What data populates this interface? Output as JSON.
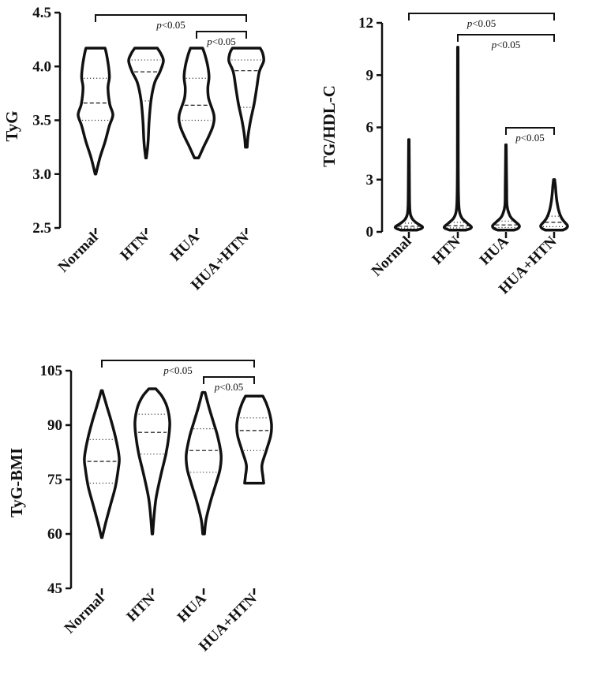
{
  "chart_data": [
    {
      "type": "violin",
      "ylabel": "TyG",
      "categories": [
        "Normal",
        "HTN",
        "HUA",
        "HUA+HTN"
      ],
      "ylim": [
        2.5,
        4.5
      ],
      "yticks": [
        "2.5",
        "3.0",
        "3.5",
        "4.0",
        "4.5"
      ],
      "grid": false,
      "violins": [
        {
          "min": 3.0,
          "max": 4.17,
          "q1": 3.5,
          "median": 3.66,
          "q3": 3.89,
          "profile": [
            [
              3.0,
              0.02
            ],
            [
              3.15,
              0.25
            ],
            [
              3.3,
              0.55
            ],
            [
              3.45,
              0.8
            ],
            [
              3.55,
              1.0
            ],
            [
              3.65,
              0.82
            ],
            [
              3.8,
              0.72
            ],
            [
              3.9,
              0.8
            ],
            [
              4.0,
              0.75
            ],
            [
              4.1,
              0.65
            ],
            [
              4.17,
              0.55
            ]
          ]
        },
        {
          "min": 3.15,
          "max": 4.17,
          "q1": 3.68,
          "median": 3.95,
          "q3": 4.06,
          "profile": [
            [
              3.15,
              0.02
            ],
            [
              3.3,
              0.12
            ],
            [
              3.5,
              0.18
            ],
            [
              3.7,
              0.3
            ],
            [
              3.85,
              0.5
            ],
            [
              3.95,
              0.8
            ],
            [
              4.05,
              1.0
            ],
            [
              4.12,
              0.85
            ],
            [
              4.17,
              0.65
            ]
          ]
        },
        {
          "min": 3.15,
          "max": 4.17,
          "q1": 3.5,
          "median": 3.64,
          "q3": 3.89,
          "profile": [
            [
              3.15,
              0.12
            ],
            [
              3.25,
              0.4
            ],
            [
              3.35,
              0.7
            ],
            [
              3.45,
              0.95
            ],
            [
              3.55,
              1.0
            ],
            [
              3.7,
              0.7
            ],
            [
              3.8,
              0.65
            ],
            [
              3.9,
              0.72
            ],
            [
              4.0,
              0.65
            ],
            [
              4.1,
              0.5
            ],
            [
              4.17,
              0.35
            ]
          ]
        },
        {
          "min": 3.25,
          "max": 4.17,
          "q1": 3.62,
          "median": 3.96,
          "q3": 4.06,
          "profile": [
            [
              3.25,
              0.05
            ],
            [
              3.35,
              0.1
            ],
            [
              3.5,
              0.25
            ],
            [
              3.65,
              0.45
            ],
            [
              3.8,
              0.6
            ],
            [
              3.95,
              0.75
            ],
            [
              4.05,
              1.0
            ],
            [
              4.12,
              0.95
            ],
            [
              4.17,
              0.8
            ]
          ]
        }
      ],
      "comparisons": [
        {
          "from": "Normal",
          "to": "HUA+HTN",
          "label_p": "p",
          "label_rest": "<0.05"
        },
        {
          "from": "HUA",
          "to": "HUA+HTN",
          "label_p": "p",
          "label_rest": "<0.05"
        }
      ]
    },
    {
      "type": "violin",
      "ylabel": "TG/HDL-C",
      "categories": [
        "Normal",
        "HTN",
        "HUA",
        "HUA+HTN"
      ],
      "ylim": [
        0,
        12
      ],
      "yticks": [
        "0",
        "3",
        "6",
        "9",
        "12"
      ],
      "grid": false,
      "violins": [
        {
          "min": 0.1,
          "max": 5.3,
          "q1": 0.22,
          "median": 0.32,
          "q3": 0.5,
          "profile": [
            [
              0.1,
              0.6
            ],
            [
              0.2,
              0.95
            ],
            [
              0.3,
              1.0
            ],
            [
              0.45,
              0.7
            ],
            [
              0.7,
              0.3
            ],
            [
              1.0,
              0.12
            ],
            [
              1.5,
              0.06
            ],
            [
              2.5,
              0.04
            ],
            [
              5.3,
              0.02
            ]
          ]
        },
        {
          "min": 0.1,
          "max": 10.6,
          "q1": 0.23,
          "median": 0.35,
          "q3": 0.55,
          "profile": [
            [
              0.1,
              0.6
            ],
            [
              0.2,
              0.95
            ],
            [
              0.3,
              1.0
            ],
            [
              0.5,
              0.7
            ],
            [
              0.8,
              0.3
            ],
            [
              1.2,
              0.12
            ],
            [
              2.0,
              0.05
            ],
            [
              4.0,
              0.03
            ],
            [
              10.6,
              0.02
            ]
          ]
        },
        {
          "min": 0.1,
          "max": 5.0,
          "q1": 0.25,
          "median": 0.4,
          "q3": 0.62,
          "profile": [
            [
              0.1,
              0.6
            ],
            [
              0.2,
              0.9
            ],
            [
              0.35,
              1.0
            ],
            [
              0.55,
              0.75
            ],
            [
              0.8,
              0.4
            ],
            [
              1.0,
              0.25
            ],
            [
              1.5,
              0.08
            ],
            [
              2.5,
              0.05
            ],
            [
              5.0,
              0.02
            ]
          ]
        },
        {
          "min": 0.1,
          "max": 3.0,
          "q1": 0.3,
          "median": 0.55,
          "q3": 0.9,
          "profile": [
            [
              0.1,
              0.65
            ],
            [
              0.2,
              0.9
            ],
            [
              0.35,
              1.0
            ],
            [
              0.55,
              0.8
            ],
            [
              0.8,
              0.55
            ],
            [
              1.2,
              0.35
            ],
            [
              1.7,
              0.22
            ],
            [
              2.2,
              0.14
            ],
            [
              2.6,
              0.1
            ],
            [
              3.0,
              0.04
            ]
          ]
        }
      ],
      "comparisons": [
        {
          "from": "Normal",
          "to": "HUA+HTN",
          "label_p": "p",
          "label_rest": "<0.05"
        },
        {
          "from": "HTN",
          "to": "HUA+HTN",
          "label_p": "p",
          "label_rest": "<0.05"
        },
        {
          "from": "HUA",
          "to": "HUA+HTN",
          "label_p": "p",
          "label_rest": "<0.05"
        }
      ]
    },
    {
      "type": "violin",
      "ylabel": "TyG-BMI",
      "categories": [
        "Normal",
        "HTN",
        "HUA",
        "HUA+HTN"
      ],
      "ylim": [
        45,
        105
      ],
      "yticks": [
        "45",
        "60",
        "75",
        "90",
        "105"
      ],
      "grid": false,
      "violins": [
        {
          "min": 59,
          "max": 99.5,
          "q1": 74,
          "median": 80,
          "q3": 86,
          "profile": [
            [
              59,
              0.02
            ],
            [
              63,
              0.22
            ],
            [
              68,
              0.5
            ],
            [
              73,
              0.78
            ],
            [
              78,
              0.95
            ],
            [
              81,
              1.0
            ],
            [
              86,
              0.82
            ],
            [
              91,
              0.55
            ],
            [
              95,
              0.3
            ],
            [
              98,
              0.12
            ],
            [
              99.5,
              0.03
            ]
          ]
        },
        {
          "min": 60,
          "max": 100,
          "q1": 82,
          "median": 88,
          "q3": 93,
          "profile": [
            [
              60,
              0.02
            ],
            [
              65,
              0.1
            ],
            [
              70,
              0.22
            ],
            [
              76,
              0.48
            ],
            [
              82,
              0.78
            ],
            [
              87,
              0.95
            ],
            [
              91,
              1.0
            ],
            [
              95,
              0.85
            ],
            [
              98,
              0.55
            ],
            [
              100,
              0.2
            ]
          ]
        },
        {
          "min": 60,
          "max": 99,
          "q1": 77,
          "median": 83,
          "q3": 89,
          "profile": [
            [
              60,
              0.05
            ],
            [
              64,
              0.14
            ],
            [
              69,
              0.4
            ],
            [
              74,
              0.72
            ],
            [
              78,
              0.95
            ],
            [
              82,
              1.0
            ],
            [
              87,
              0.8
            ],
            [
              91,
              0.55
            ],
            [
              95,
              0.3
            ],
            [
              99,
              0.08
            ]
          ]
        },
        {
          "min": 74,
          "max": 98,
          "q1": 83,
          "median": 88.5,
          "q3": 92,
          "profile": [
            [
              74,
              0.55
            ],
            [
              76,
              0.5
            ],
            [
              79,
              0.45
            ],
            [
              83,
              0.7
            ],
            [
              87,
              0.95
            ],
            [
              90,
              1.0
            ],
            [
              93,
              0.9
            ],
            [
              96,
              0.7
            ],
            [
              98,
              0.5
            ]
          ]
        }
      ],
      "comparisons": [
        {
          "from": "Normal",
          "to": "HUA+HTN",
          "label_p": "p",
          "label_rest": "<0.05"
        },
        {
          "from": "HUA",
          "to": "HUA+HTN",
          "label_p": "p",
          "label_rest": "<0.05"
        }
      ]
    }
  ]
}
